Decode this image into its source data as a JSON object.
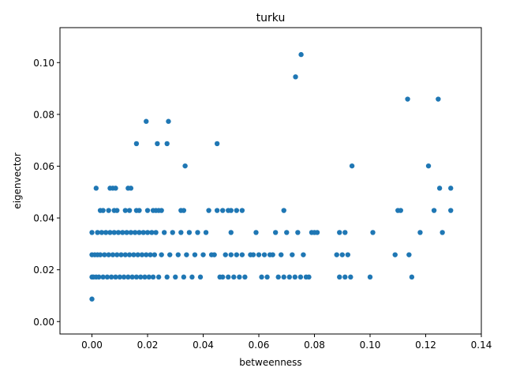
{
  "chart_data": {
    "type": "scatter",
    "title": "turku",
    "xlabel": "betweenness",
    "ylabel": "eigenvector",
    "xlim": [
      -0.0115,
      0.14
    ],
    "ylim": [
      -0.0048,
      0.1135
    ],
    "xticks": [
      0.0,
      0.02,
      0.04,
      0.06,
      0.08,
      0.1,
      0.12,
      0.14
    ],
    "xtick_labels": [
      "0.00",
      "0.02",
      "0.04",
      "0.06",
      "0.08",
      "0.10",
      "0.12",
      "0.14"
    ],
    "yticks": [
      0.0,
      0.02,
      0.04,
      0.06,
      0.08,
      0.1
    ],
    "ytick_labels": [
      "0.00",
      "0.02",
      "0.04",
      "0.06",
      "0.08",
      "0.10"
    ],
    "grid": false,
    "marker_color": "#1f77b4",
    "points": [
      [
        0,
        0.0087
      ],
      [
        0,
        0.0172
      ],
      [
        0,
        0.0258
      ],
      [
        0,
        0.0344
      ],
      [
        0.0005,
        0.0172
      ],
      [
        0.001,
        0.0258
      ],
      [
        0.0015,
        0.0172
      ],
      [
        0.002,
        0.0344
      ],
      [
        0.002,
        0.0258
      ],
      [
        0.0025,
        0.0172
      ],
      [
        0.003,
        0.0258
      ],
      [
        0.0035,
        0.0344
      ],
      [
        0.004,
        0.0172
      ],
      [
        0.0045,
        0.0258
      ],
      [
        0.005,
        0.0344
      ],
      [
        0.0055,
        0.0172
      ],
      [
        0.006,
        0.0258
      ],
      [
        0.0065,
        0.0344
      ],
      [
        0.007,
        0.0172
      ],
      [
        0.0075,
        0.0258
      ],
      [
        0.008,
        0.0344
      ],
      [
        0.0085,
        0.0172
      ],
      [
        0.009,
        0.0258
      ],
      [
        0.0095,
        0.0344
      ],
      [
        0.01,
        0.0172
      ],
      [
        0.0105,
        0.0258
      ],
      [
        0.011,
        0.0344
      ],
      [
        0.0115,
        0.0172
      ],
      [
        0.012,
        0.0258
      ],
      [
        0.0125,
        0.0344
      ],
      [
        0.013,
        0.0172
      ],
      [
        0.0135,
        0.0258
      ],
      [
        0.014,
        0.0344
      ],
      [
        0.0145,
        0.0172
      ],
      [
        0.015,
        0.0258
      ],
      [
        0.0155,
        0.0344
      ],
      [
        0.016,
        0.0172
      ],
      [
        0.0165,
        0.0258
      ],
      [
        0.017,
        0.0344
      ],
      [
        0.0175,
        0.0172
      ],
      [
        0.018,
        0.0258
      ],
      [
        0.0185,
        0.0344
      ],
      [
        0.019,
        0.0172
      ],
      [
        0.0195,
        0.0258
      ],
      [
        0.02,
        0.0344
      ],
      [
        0.0205,
        0.0172
      ],
      [
        0.021,
        0.0258
      ],
      [
        0.0215,
        0.0344
      ],
      [
        0.022,
        0.0172
      ],
      [
        0.0225,
        0.0258
      ],
      [
        0.023,
        0.0344
      ],
      [
        0.024,
        0.0172
      ],
      [
        0.025,
        0.0258
      ],
      [
        0.026,
        0.0344
      ],
      [
        0.027,
        0.0172
      ],
      [
        0.028,
        0.0258
      ],
      [
        0.029,
        0.0344
      ],
      [
        0.03,
        0.0172
      ],
      [
        0.031,
        0.0258
      ],
      [
        0.032,
        0.0344
      ],
      [
        0.033,
        0.0172
      ],
      [
        0.034,
        0.0258
      ],
      [
        0.035,
        0.0344
      ],
      [
        0.036,
        0.0172
      ],
      [
        0.037,
        0.0258
      ],
      [
        0.038,
        0.0344
      ],
      [
        0.039,
        0.0172
      ],
      [
        0.04,
        0.0258
      ],
      [
        0.041,
        0.0344
      ],
      [
        0.043,
        0.0258
      ],
      [
        0.044,
        0.0258
      ],
      [
        0.046,
        0.0172
      ],
      [
        0.047,
        0.0172
      ],
      [
        0.048,
        0.0258
      ],
      [
        0.049,
        0.0172
      ],
      [
        0.05,
        0.0344
      ],
      [
        0.05,
        0.0258
      ],
      [
        0.051,
        0.0172
      ],
      [
        0.052,
        0.0258
      ],
      [
        0.053,
        0.0172
      ],
      [
        0.054,
        0.0258
      ],
      [
        0.055,
        0.0172
      ],
      [
        0.057,
        0.0258
      ],
      [
        0.058,
        0.0258
      ],
      [
        0.059,
        0.0344
      ],
      [
        0.06,
        0.0258
      ],
      [
        0.061,
        0.0172
      ],
      [
        0.062,
        0.0258
      ],
      [
        0.063,
        0.0172
      ],
      [
        0.064,
        0.0258
      ],
      [
        0.065,
        0.0258
      ],
      [
        0.066,
        0.0344
      ],
      [
        0.067,
        0.0172
      ],
      [
        0.068,
        0.0258
      ],
      [
        0.069,
        0.0172
      ],
      [
        0.07,
        0.0344
      ],
      [
        0.071,
        0.0172
      ],
      [
        0.072,
        0.0258
      ],
      [
        0.073,
        0.0172
      ],
      [
        0.074,
        0.0344
      ],
      [
        0.075,
        0.0172
      ],
      [
        0.076,
        0.0258
      ],
      [
        0.077,
        0.0172
      ],
      [
        0.078,
        0.0172
      ],
      [
        0.079,
        0.0344
      ],
      [
        0.08,
        0.0344
      ],
      [
        0.081,
        0.0344
      ],
      [
        0.088,
        0.0258
      ],
      [
        0.089,
        0.0172
      ],
      [
        0.089,
        0.0344
      ],
      [
        0.09,
        0.0258
      ],
      [
        0.091,
        0.0344
      ],
      [
        0.091,
        0.0172
      ],
      [
        0.092,
        0.0258
      ],
      [
        0.093,
        0.0172
      ],
      [
        0.1,
        0.0172
      ],
      [
        0.101,
        0.0344
      ],
      [
        0.109,
        0.0258
      ],
      [
        0.114,
        0.0258
      ],
      [
        0.115,
        0.0172
      ],
      [
        0.118,
        0.0344
      ],
      [
        0.126,
        0.0344
      ],
      [
        0.0015,
        0.0515
      ],
      [
        0.003,
        0.0429
      ],
      [
        0.004,
        0.0429
      ],
      [
        0.006,
        0.0429
      ],
      [
        0.0065,
        0.0515
      ],
      [
        0.0075,
        0.0515
      ],
      [
        0.008,
        0.0429
      ],
      [
        0.0085,
        0.0515
      ],
      [
        0.009,
        0.0429
      ],
      [
        0.012,
        0.0429
      ],
      [
        0.013,
        0.0515
      ],
      [
        0.0135,
        0.0429
      ],
      [
        0.014,
        0.0515
      ],
      [
        0.016,
        0.0429
      ],
      [
        0.017,
        0.0429
      ],
      [
        0.02,
        0.0429
      ],
      [
        0.022,
        0.0429
      ],
      [
        0.023,
        0.0429
      ],
      [
        0.024,
        0.0429
      ],
      [
        0.025,
        0.0429
      ],
      [
        0.032,
        0.0429
      ],
      [
        0.033,
        0.0429
      ],
      [
        0.042,
        0.0429
      ],
      [
        0.045,
        0.0429
      ],
      [
        0.047,
        0.0429
      ],
      [
        0.049,
        0.0429
      ],
      [
        0.05,
        0.0429
      ],
      [
        0.052,
        0.0429
      ],
      [
        0.054,
        0.0429
      ],
      [
        0.069,
        0.0429
      ],
      [
        0.11,
        0.0429
      ],
      [
        0.111,
        0.0429
      ],
      [
        0.123,
        0.0429
      ],
      [
        0.129,
        0.0429
      ],
      [
        0.125,
        0.0515
      ],
      [
        0.129,
        0.0515
      ],
      [
        0.121,
        0.0601
      ],
      [
        0.016,
        0.0687
      ],
      [
        0.0235,
        0.0687
      ],
      [
        0.027,
        0.0687
      ],
      [
        0.0335,
        0.0601
      ],
      [
        0.045,
        0.0687
      ],
      [
        0.0195,
        0.0773
      ],
      [
        0.0275,
        0.0773
      ],
      [
        0.0935,
        0.0601
      ],
      [
        0.0732,
        0.0945
      ],
      [
        0.0752,
        0.1031
      ],
      [
        0.1135,
        0.0859
      ],
      [
        0.1245,
        0.0859
      ]
    ]
  }
}
